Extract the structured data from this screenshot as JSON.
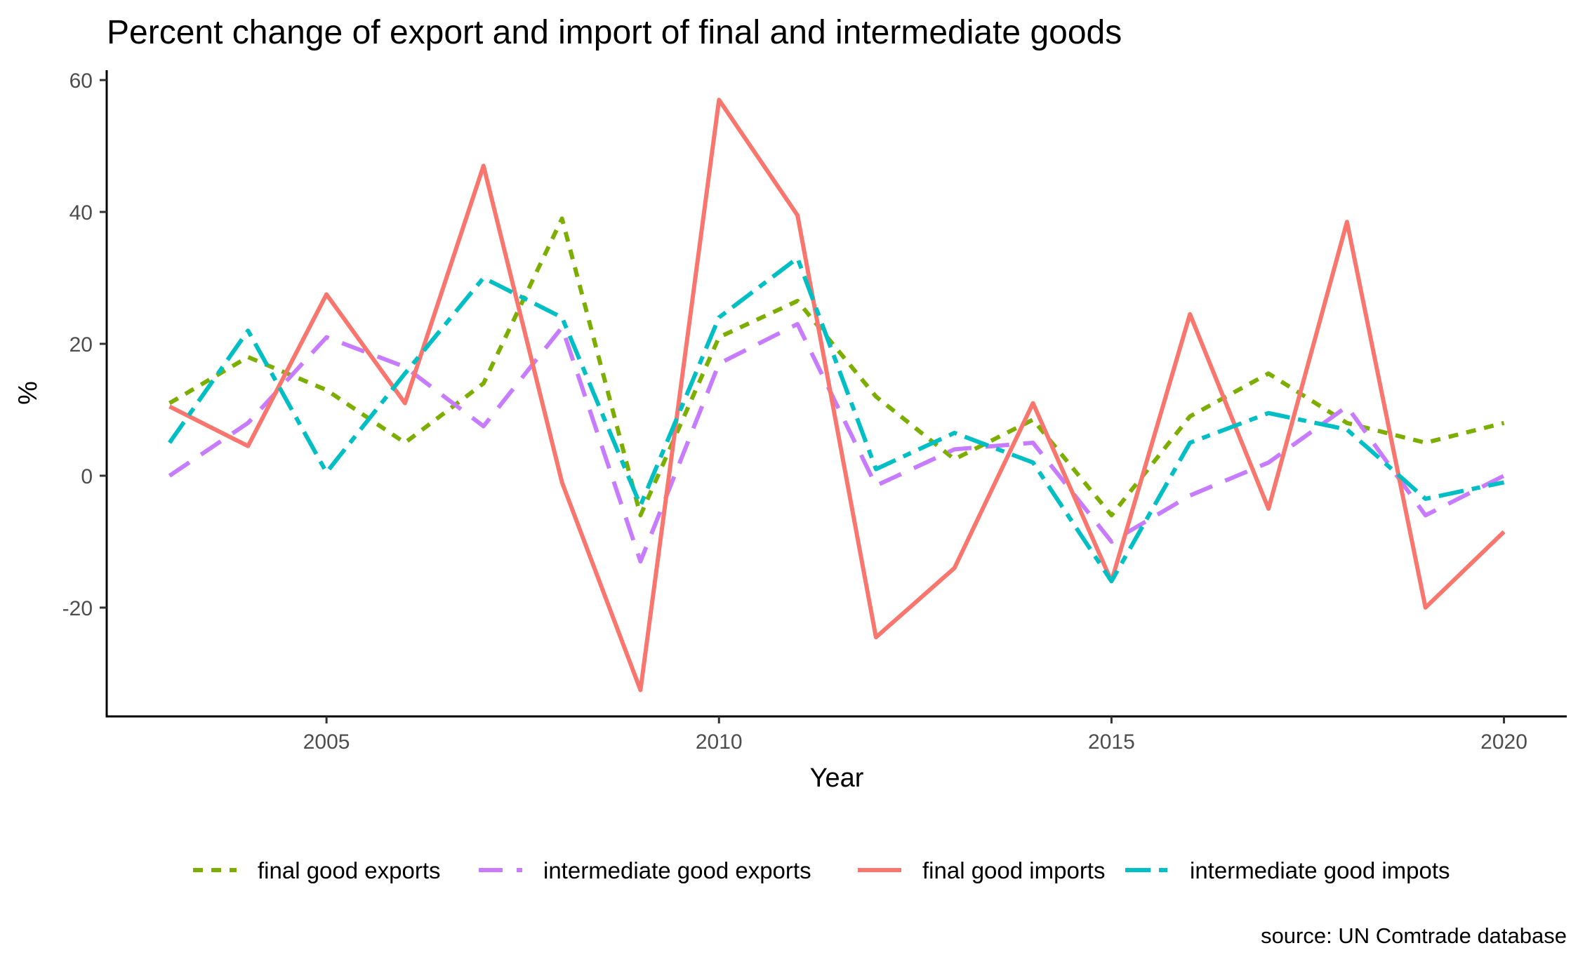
{
  "chart_data": {
    "type": "line",
    "title": "Percent change of export and import of final and intermediate goods",
    "xlabel": "Year",
    "ylabel": "%",
    "caption": "source: UN Comtrade database",
    "x": [
      2003,
      2004,
      2005,
      2006,
      2007,
      2008,
      2009,
      2010,
      2011,
      2012,
      2013,
      2014,
      2015,
      2016,
      2017,
      2018,
      2019,
      2020
    ],
    "xlim": [
      2002.2,
      2020.8
    ],
    "ylim": [
      -36.5,
      61.5
    ],
    "x_ticks": [
      2005,
      2010,
      2015,
      2020
    ],
    "y_ticks": [
      -20,
      0,
      20,
      40,
      60
    ],
    "grid": false,
    "legend_position": "bottom",
    "series": [
      {
        "name": "final good exports",
        "color": "#7cae00",
        "dash": "dotted",
        "values": [
          11,
          18,
          13,
          5,
          14,
          39,
          -6,
          21,
          26.5,
          12,
          2.5,
          8.5,
          -6,
          9,
          15.5,
          8,
          5,
          8
        ]
      },
      {
        "name": "intermediate good exports",
        "color": "#c77cff",
        "dash": "dashed",
        "values": [
          0,
          8,
          21,
          16.5,
          7.5,
          22.5,
          -13,
          17,
          23,
          -1.5,
          4,
          5,
          -10,
          -3,
          2,
          10.5,
          -6,
          0
        ]
      },
      {
        "name": "final good imports",
        "color": "#f8766d",
        "dash": "solid",
        "values": [
          10.5,
          4.5,
          27.5,
          11,
          47,
          -1,
          -32.5,
          57,
          39.5,
          -24.5,
          -14,
          11,
          -16,
          24.5,
          -5,
          38.5,
          -20,
          -8.5
        ]
      },
      {
        "name": "intermediate good impots",
        "color": "#00bfc4",
        "dash": "dashdot",
        "values": [
          5,
          22,
          0.5,
          15.5,
          30,
          24,
          -4.5,
          24,
          33,
          1,
          6.5,
          2,
          -16,
          5,
          9.5,
          7,
          -3.5,
          -1
        ]
      }
    ]
  }
}
